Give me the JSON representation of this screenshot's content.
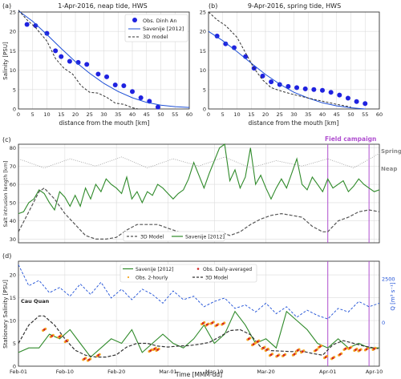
{
  "panel_a": {
    "letter": "(a)",
    "title": "1-Apr-2016, neap tide, HWS",
    "ylabel": "Salinity [PSU]",
    "xlabel": "distance from the mouth [km]"
  },
  "panel_b": {
    "letter": "(b)",
    "title": "9-Apr-2016, spring tide, HWS",
    "xlabel": "distance from the mouth [km]"
  },
  "panel_c": {
    "letter": "(c)",
    "ylabel": "Salt intrusion length [km]",
    "campaign_label": "Field campaign",
    "spring_label": "Spring",
    "neap_label": "Neap"
  },
  "panel_d": {
    "letter": "(d)",
    "ylabel": "Stationary Salinity [PSU]",
    "y2label": "Q [m³ s⁻¹]",
    "station_label": "Cau Quan",
    "xlabel": "Time [MMM-dd]"
  },
  "legend_ab": {
    "obs": "Obs. Dinh An",
    "sav": "Savenije [2012]",
    "model": "3D model"
  },
  "legend_c": {
    "model": "3D Model",
    "sav": "Savenije [2012]"
  },
  "legend_d": {
    "sav": "Savenije [2012]",
    "obs2": "Obs. 2-hourly",
    "obsd": "Obs. Daily-averaged",
    "model": "3D Model"
  },
  "colors": {
    "obs": "#1f22e0",
    "sav": "#1d4fd6",
    "model": "#333333",
    "green": "#2f8a2a",
    "campaign": "#b04fd0",
    "grey": "#999999",
    "orange": "#f5a623",
    "red": "#d22222"
  },
  "chart_data": [
    {
      "type": "line",
      "panel": "a",
      "xlim": [
        0,
        60
      ],
      "ylim": [
        0,
        25
      ],
      "xticks": [
        0,
        5,
        10,
        15,
        20,
        25,
        30,
        35,
        40,
        45,
        50,
        55,
        60
      ],
      "yticks": [
        0,
        5,
        10,
        15,
        20,
        25
      ],
      "series": [
        {
          "name": "Obs. Dinh An",
          "kind": "scatter",
          "x": [
            3,
            6,
            10,
            13,
            15,
            18,
            21,
            24,
            28,
            31,
            34,
            37,
            40,
            43,
            46,
            49
          ],
          "y": [
            21.8,
            21.5,
            19.5,
            15,
            13.5,
            12.3,
            12,
            11.5,
            9,
            8.3,
            6.2,
            6.0,
            4.5,
            2.9,
            2.0,
            0.5
          ]
        },
        {
          "name": "Savenije [2012]",
          "kind": "line",
          "x": [
            0,
            5,
            10,
            15,
            20,
            25,
            30,
            35,
            40,
            45,
            50,
            55,
            60
          ],
          "y": [
            25.3,
            22.6,
            19.2,
            15.6,
            12.2,
            9.2,
            6.6,
            4.5,
            2.9,
            1.7,
            1.0,
            0.6,
            0.4
          ]
        },
        {
          "name": "3D model",
          "kind": "dash",
          "x": [
            0,
            3,
            6,
            10,
            13,
            16,
            19,
            22,
            25,
            28,
            31,
            34,
            37,
            40,
            42
          ],
          "y": [
            25.5,
            23,
            21,
            17.5,
            13,
            10.5,
            9,
            6,
            4.3,
            4.1,
            3,
            1.5,
            1.2,
            0.3,
            0
          ]
        }
      ]
    },
    {
      "type": "line",
      "panel": "b",
      "xlim": [
        0,
        60
      ],
      "ylim": [
        0,
        25
      ],
      "xticks": [
        0,
        5,
        10,
        15,
        20,
        25,
        30,
        35,
        40,
        45,
        50,
        55,
        60
      ],
      "yticks": [
        0,
        5,
        10,
        15,
        20,
        25
      ],
      "series": [
        {
          "name": "Obs. Dinh An",
          "kind": "scatter",
          "x": [
            3,
            6,
            9,
            13,
            16,
            19,
            22,
            25,
            28,
            31,
            34,
            37,
            40,
            43,
            46,
            49,
            52,
            55
          ],
          "y": [
            18.8,
            16.8,
            15.8,
            13.5,
            10.5,
            8.5,
            7,
            6.3,
            5.8,
            5.5,
            5.2,
            5,
            4.8,
            4.3,
            3.6,
            2.8,
            1.9,
            1.4
          ]
        },
        {
          "name": "Savenije [2012]",
          "kind": "line",
          "x": [
            0,
            5,
            10,
            15,
            20,
            25,
            30,
            35,
            40,
            45,
            50,
            55
          ],
          "y": [
            20,
            17.6,
            14.8,
            11.8,
            8.9,
            6.4,
            4.3,
            2.8,
            1.6,
            0.8,
            0.3,
            0
          ]
        },
        {
          "name": "3D model",
          "kind": "dash",
          "x": [
            0,
            3,
            6,
            10,
            13,
            16,
            19,
            22,
            26,
            30,
            35,
            40,
            45,
            50
          ],
          "y": [
            25,
            23,
            21.5,
            18.5,
            14.5,
            10.5,
            7.5,
            5.5,
            4.5,
            3.7,
            2.8,
            2,
            1.2,
            0.5
          ]
        }
      ]
    },
    {
      "type": "line",
      "panel": "c",
      "xlim": [
        0,
        70
      ],
      "ylim": [
        28,
        82
      ],
      "xticks": [
        "Feb-01",
        "Feb-10",
        "Feb-20",
        "Mar-01",
        "Mar-10",
        "Mar-20",
        "Apr-01",
        "Apr-10"
      ],
      "xtick_days": [
        0,
        9,
        19,
        29,
        38,
        48,
        60,
        69
      ],
      "yticks": [
        30,
        40,
        50,
        60,
        70,
        80
      ],
      "campaign_days": [
        60,
        68
      ],
      "series": [
        {
          "name": "Savenije [2012]",
          "kind": "line",
          "x": [
            0,
            1,
            2,
            3,
            4,
            5,
            6,
            7,
            8,
            9,
            10,
            11,
            12,
            13,
            14,
            15,
            16,
            17,
            18,
            19,
            20,
            21,
            22,
            23,
            24,
            25,
            26,
            27,
            28,
            29,
            30,
            31,
            32,
            33,
            34,
            35,
            36,
            37,
            38,
            39,
            40,
            41,
            42,
            43,
            44,
            45,
            46,
            47,
            48,
            49,
            50,
            51,
            52,
            53,
            54,
            55,
            56,
            57,
            58,
            59,
            60,
            61,
            62,
            63,
            64,
            65,
            66,
            67,
            68,
            69,
            70
          ],
          "y": [
            44,
            45,
            50,
            52,
            57,
            55,
            50,
            46,
            56,
            53,
            48,
            54,
            48,
            58,
            52,
            60,
            56,
            63,
            60,
            58,
            55,
            64,
            52,
            56,
            50,
            56,
            54,
            60,
            58,
            55,
            52,
            55,
            57,
            63,
            72,
            65,
            58,
            66,
            73,
            80,
            82,
            62,
            68,
            58,
            64,
            80,
            60,
            65,
            58,
            52,
            58,
            63,
            58,
            66,
            74,
            60,
            57,
            64,
            60,
            56,
            63,
            58,
            60,
            62,
            56,
            59,
            63,
            60,
            58,
            56,
            57
          ]
        },
        {
          "name": "3D Model",
          "kind": "dash",
          "x": [
            0,
            2,
            4,
            5,
            7,
            9,
            11,
            13,
            15,
            17,
            19,
            21,
            23,
            25,
            27,
            29,
            31,
            33,
            35,
            37,
            39,
            41,
            43,
            45,
            47,
            49,
            51,
            53,
            55,
            57,
            59,
            60,
            62,
            64,
            66,
            68,
            70
          ],
          "y": [
            34,
            45,
            56,
            58,
            52,
            44,
            38,
            32,
            30,
            30,
            31,
            35,
            38,
            38,
            38,
            36,
            34,
            31,
            31,
            33,
            34,
            32,
            34,
            38,
            41,
            43,
            44,
            43,
            42,
            37,
            34,
            34,
            40,
            42,
            45,
            46,
            45
          ]
        },
        {
          "name": "Spring/Neap envelope",
          "kind": "dot",
          "x": [
            0,
            5,
            10,
            15,
            20,
            25,
            30,
            35,
            40,
            45,
            50,
            55,
            60,
            65,
            70
          ],
          "y": [
            74,
            69,
            74,
            70,
            75,
            69,
            74,
            70,
            75,
            69,
            73,
            70,
            74,
            69,
            77
          ]
        }
      ]
    },
    {
      "type": "line",
      "panel": "d",
      "xlim": [
        0,
        70
      ],
      "ylim": [
        0,
        23
      ],
      "y2lim": [
        -2500,
        3500
      ],
      "xticks": [
        "Feb-01",
        "Feb-10",
        "Feb-20",
        "Mar-01",
        "Mar-10",
        "Mar-20",
        "Apr-01",
        "Apr-10"
      ],
      "xtick_days": [
        0,
        9,
        19,
        29,
        38,
        48,
        60,
        69
      ],
      "yticks": [
        0,
        5,
        10,
        15,
        20
      ],
      "y2ticks": [
        0,
        2500
      ],
      "campaign_days": [
        60,
        68
      ],
      "series": [
        {
          "name": "Savenije [2012]",
          "kind": "line",
          "x": [
            0,
            2,
            4,
            6,
            8,
            10,
            12,
            14,
            16,
            18,
            20,
            22,
            24,
            26,
            28,
            30,
            32,
            34,
            36,
            38,
            40,
            42,
            44,
            46,
            48,
            50,
            52,
            54,
            56,
            58,
            60,
            62,
            64,
            66,
            68,
            70
          ],
          "y": [
            3,
            4,
            4,
            7,
            6,
            8,
            5,
            2,
            4,
            6,
            5,
            8,
            3,
            5,
            7,
            5,
            4,
            6,
            9,
            5,
            7,
            12,
            9,
            5,
            6,
            4,
            12,
            10,
            8,
            5,
            4,
            6,
            4,
            5,
            4,
            4
          ]
        },
        {
          "name": "3D Model",
          "kind": "dash",
          "x": [
            0,
            2,
            4,
            5,
            7,
            9,
            11,
            13,
            15,
            17,
            19,
            21,
            23,
            25,
            27,
            29,
            31,
            33,
            35,
            37,
            39,
            41,
            43,
            45,
            47,
            49,
            51,
            53,
            55,
            57,
            59,
            61,
            63,
            65,
            67,
            69,
            70
          ],
          "y": [
            5,
            9,
            11,
            11,
            9,
            6,
            3.5,
            2.4,
            2,
            2,
            2.5,
            4.2,
            5,
            5,
            4.4,
            4.2,
            4.4,
            4.5,
            4.8,
            5.2,
            6.4,
            7.8,
            8,
            6.9,
            4.2,
            3.4,
            3.3,
            3.2,
            3.3,
            2.8,
            2.4,
            4.7,
            5.6,
            5,
            4.4,
            4,
            3.8
          ]
        },
        {
          "name": "Q",
          "kind": "bluedash",
          "x": [
            0,
            2,
            4,
            6,
            8,
            10,
            12,
            14,
            16,
            18,
            20,
            22,
            24,
            26,
            28,
            30,
            32,
            34,
            36,
            38,
            40,
            42,
            44,
            46,
            48,
            50,
            52,
            54,
            56,
            58,
            60,
            62,
            64,
            66,
            68,
            70
          ],
          "y": [
            3300,
            2100,
            2400,
            1700,
            2000,
            1500,
            2200,
            1600,
            2300,
            1400,
            1900,
            1300,
            1900,
            1600,
            1100,
            1800,
            1300,
            1500,
            900,
            1200,
            1400,
            800,
            1000,
            600,
            1100,
            500,
            900,
            300,
            700,
            400,
            200,
            800,
            600,
            1200,
            900,
            1100
          ]
        },
        {
          "name": "Obs. Daily-averaged",
          "kind": "reddots",
          "x": [
            5,
            6.5,
            8,
            9.3,
            12.8,
            13.7,
            15.5,
            25.6,
            26.4,
            27,
            35.8,
            36.6,
            37.6,
            38.5,
            39.7,
            44.7,
            45.6,
            46.4,
            47.5,
            48.2,
            49,
            50.3,
            51.5,
            53.5,
            54.2,
            55.1,
            57.7,
            58.5,
            59.6,
            61,
            62.4,
            63.4,
            64.3,
            65.4,
            66.2,
            67.5,
            69
          ],
          "y": [
            8,
            6.6,
            6.5,
            5.5,
            1.6,
            1.4,
            2.4,
            3.4,
            3.8,
            3.6,
            9.4,
            9.1,
            9.5,
            9,
            9.3,
            6,
            4.8,
            5.4,
            4,
            3.6,
            2.5,
            2.3,
            2.4,
            2.6,
            3.5,
            3.2,
            3.5,
            4.3,
            2,
            1.8,
            2.6,
            3.8,
            4,
            3.6,
            3.5,
            3.7,
            3.8
          ]
        }
      ]
    }
  ]
}
